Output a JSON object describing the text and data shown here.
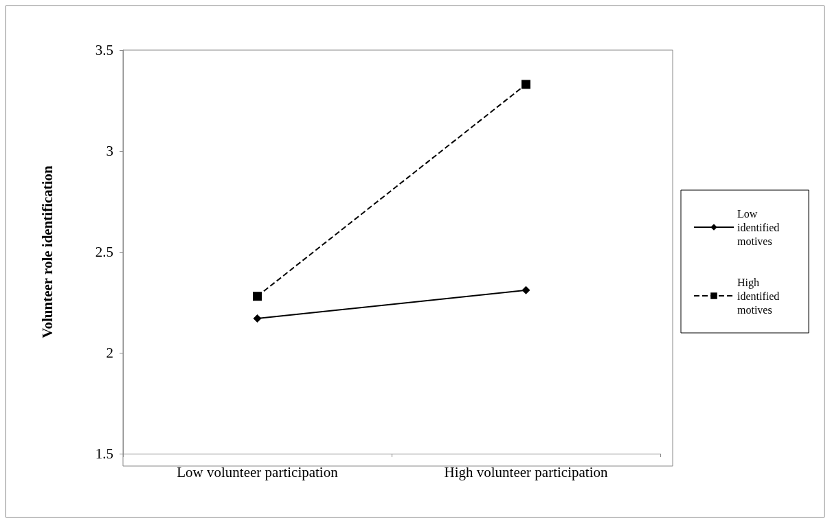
{
  "chart_data": {
    "type": "line",
    "ylabel": "Volunteer role identification",
    "categories": [
      "Low volunteer participation",
      "High volunteer participation"
    ],
    "series": [
      {
        "name": "Low identified motives",
        "color": "#000000",
        "values": [
          2.17,
          2.31
        ],
        "marker": "diamond",
        "line_style": "solid"
      },
      {
        "name": "High identified motives",
        "color": "#000000",
        "values": [
          2.28,
          3.33
        ],
        "marker": "square",
        "line_style": "dashed"
      }
    ],
    "ylim": [
      1.5,
      3.5
    ],
    "yticks": [
      1.5,
      2,
      2.5,
      3,
      3.5
    ],
    "grid": false,
    "legend": "right"
  }
}
